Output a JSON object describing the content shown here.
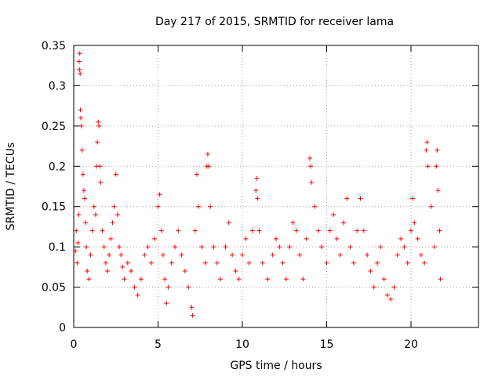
{
  "chart_data": {
    "type": "scatter",
    "title": "Day 217 of 2015, SRMTID for receiver lama",
    "xlabel": "GPS time / hours",
    "ylabel": "SRMTID / TECUs",
    "xlim": [
      0,
      24
    ],
    "ylim": [
      0,
      0.35
    ],
    "xticks": [
      0,
      5,
      10,
      15,
      20
    ],
    "xtick_labels": [
      "0",
      "5",
      "10",
      "15",
      "20"
    ],
    "yticks": [
      0,
      0.05,
      0.1,
      0.15,
      0.2,
      0.25,
      0.3,
      0.35
    ],
    "ytick_labels": [
      "0",
      "0.05",
      "0.1",
      "0.15",
      "0.2",
      "0.25",
      "0.3",
      "0.35"
    ],
    "grid": true,
    "marker": "+",
    "color": "#ff0000",
    "series": [
      {
        "name": "SRMTID",
        "points": [
          [
            0.1,
            0.095
          ],
          [
            0.15,
            0.12
          ],
          [
            0.2,
            0.08
          ],
          [
            0.25,
            0.105
          ],
          [
            0.3,
            0.14
          ],
          [
            0.32,
            0.33
          ],
          [
            0.34,
            0.32
          ],
          [
            0.36,
            0.34
          ],
          [
            0.38,
            0.315
          ],
          [
            0.4,
            0.27
          ],
          [
            0.42,
            0.26
          ],
          [
            0.45,
            0.25
          ],
          [
            0.5,
            0.22
          ],
          [
            0.55,
            0.19
          ],
          [
            0.6,
            0.17
          ],
          [
            0.65,
            0.16
          ],
          [
            0.7,
            0.13
          ],
          [
            0.75,
            0.1
          ],
          [
            0.8,
            0.07
          ],
          [
            0.9,
            0.06
          ],
          [
            1.0,
            0.09
          ],
          [
            1.1,
            0.12
          ],
          [
            1.2,
            0.15
          ],
          [
            1.3,
            0.14
          ],
          [
            1.35,
            0.2
          ],
          [
            1.4,
            0.23
          ],
          [
            1.45,
            0.255
          ],
          [
            1.5,
            0.25
          ],
          [
            1.55,
            0.2
          ],
          [
            1.6,
            0.18
          ],
          [
            1.7,
            0.12
          ],
          [
            1.8,
            0.1
          ],
          [
            1.9,
            0.08
          ],
          [
            2.0,
            0.07
          ],
          [
            2.1,
            0.09
          ],
          [
            2.2,
            0.11
          ],
          [
            2.3,
            0.13
          ],
          [
            2.4,
            0.15
          ],
          [
            2.5,
            0.19
          ],
          [
            2.6,
            0.14
          ],
          [
            2.7,
            0.1
          ],
          [
            2.8,
            0.09
          ],
          [
            2.9,
            0.075
          ],
          [
            3.0,
            0.06
          ],
          [
            3.2,
            0.08
          ],
          [
            3.4,
            0.07
          ],
          [
            3.6,
            0.05
          ],
          [
            3.8,
            0.04
          ],
          [
            4.0,
            0.06
          ],
          [
            4.2,
            0.09
          ],
          [
            4.4,
            0.1
          ],
          [
            4.6,
            0.08
          ],
          [
            4.8,
            0.11
          ],
          [
            5.0,
            0.15
          ],
          [
            5.1,
            0.165
          ],
          [
            5.2,
            0.12
          ],
          [
            5.3,
            0.09
          ],
          [
            5.4,
            0.06
          ],
          [
            5.5,
            0.03
          ],
          [
            5.6,
            0.05
          ],
          [
            5.8,
            0.08
          ],
          [
            6.0,
            0.1
          ],
          [
            6.2,
            0.12
          ],
          [
            6.4,
            0.09
          ],
          [
            6.6,
            0.07
          ],
          [
            6.8,
            0.05
          ],
          [
            7.0,
            0.025
          ],
          [
            7.05,
            0.015
          ],
          [
            7.2,
            0.12
          ],
          [
            7.3,
            0.19
          ],
          [
            7.4,
            0.15
          ],
          [
            7.6,
            0.1
          ],
          [
            7.8,
            0.08
          ],
          [
            7.9,
            0.2
          ],
          [
            7.95,
            0.215
          ],
          [
            8.0,
            0.2
          ],
          [
            8.1,
            0.15
          ],
          [
            8.3,
            0.1
          ],
          [
            8.5,
            0.08
          ],
          [
            8.7,
            0.06
          ],
          [
            9.0,
            0.1
          ],
          [
            9.2,
            0.13
          ],
          [
            9.4,
            0.09
          ],
          [
            9.6,
            0.07
          ],
          [
            9.8,
            0.06
          ],
          [
            10.0,
            0.09
          ],
          [
            10.2,
            0.11
          ],
          [
            10.4,
            0.08
          ],
          [
            10.6,
            0.12
          ],
          [
            10.8,
            0.17
          ],
          [
            10.85,
            0.185
          ],
          [
            10.9,
            0.16
          ],
          [
            11.0,
            0.12
          ],
          [
            11.2,
            0.08
          ],
          [
            11.5,
            0.06
          ],
          [
            11.8,
            0.09
          ],
          [
            12.0,
            0.11
          ],
          [
            12.2,
            0.1
          ],
          [
            12.4,
            0.08
          ],
          [
            12.6,
            0.06
          ],
          [
            12.8,
            0.1
          ],
          [
            13.0,
            0.13
          ],
          [
            13.2,
            0.12
          ],
          [
            13.4,
            0.09
          ],
          [
            13.6,
            0.06
          ],
          [
            13.8,
            0.11
          ],
          [
            14.0,
            0.21
          ],
          [
            14.05,
            0.2
          ],
          [
            14.1,
            0.18
          ],
          [
            14.3,
            0.15
          ],
          [
            14.5,
            0.12
          ],
          [
            14.7,
            0.1
          ],
          [
            15.0,
            0.08
          ],
          [
            15.2,
            0.12
          ],
          [
            15.4,
            0.14
          ],
          [
            15.6,
            0.11
          ],
          [
            15.8,
            0.09
          ],
          [
            16.0,
            0.13
          ],
          [
            16.2,
            0.16
          ],
          [
            16.4,
            0.1
          ],
          [
            16.6,
            0.08
          ],
          [
            16.8,
            0.12
          ],
          [
            17.0,
            0.16
          ],
          [
            17.2,
            0.12
          ],
          [
            17.4,
            0.09
          ],
          [
            17.6,
            0.07
          ],
          [
            17.8,
            0.05
          ],
          [
            18.0,
            0.08
          ],
          [
            18.2,
            0.1
          ],
          [
            18.4,
            0.06
          ],
          [
            18.6,
            0.04
          ],
          [
            18.8,
            0.035
          ],
          [
            19.0,
            0.05
          ],
          [
            19.2,
            0.09
          ],
          [
            19.4,
            0.11
          ],
          [
            19.6,
            0.1
          ],
          [
            19.8,
            0.08
          ],
          [
            20.0,
            0.12
          ],
          [
            20.1,
            0.16
          ],
          [
            20.2,
            0.13
          ],
          [
            20.4,
            0.11
          ],
          [
            20.6,
            0.09
          ],
          [
            20.8,
            0.08
          ],
          [
            20.9,
            0.22
          ],
          [
            20.95,
            0.23
          ],
          [
            21.0,
            0.2
          ],
          [
            21.2,
            0.15
          ],
          [
            21.4,
            0.1
          ],
          [
            21.5,
            0.2
          ],
          [
            21.55,
            0.22
          ],
          [
            21.6,
            0.17
          ],
          [
            21.7,
            0.12
          ],
          [
            21.75,
            0.06
          ]
        ]
      }
    ]
  }
}
